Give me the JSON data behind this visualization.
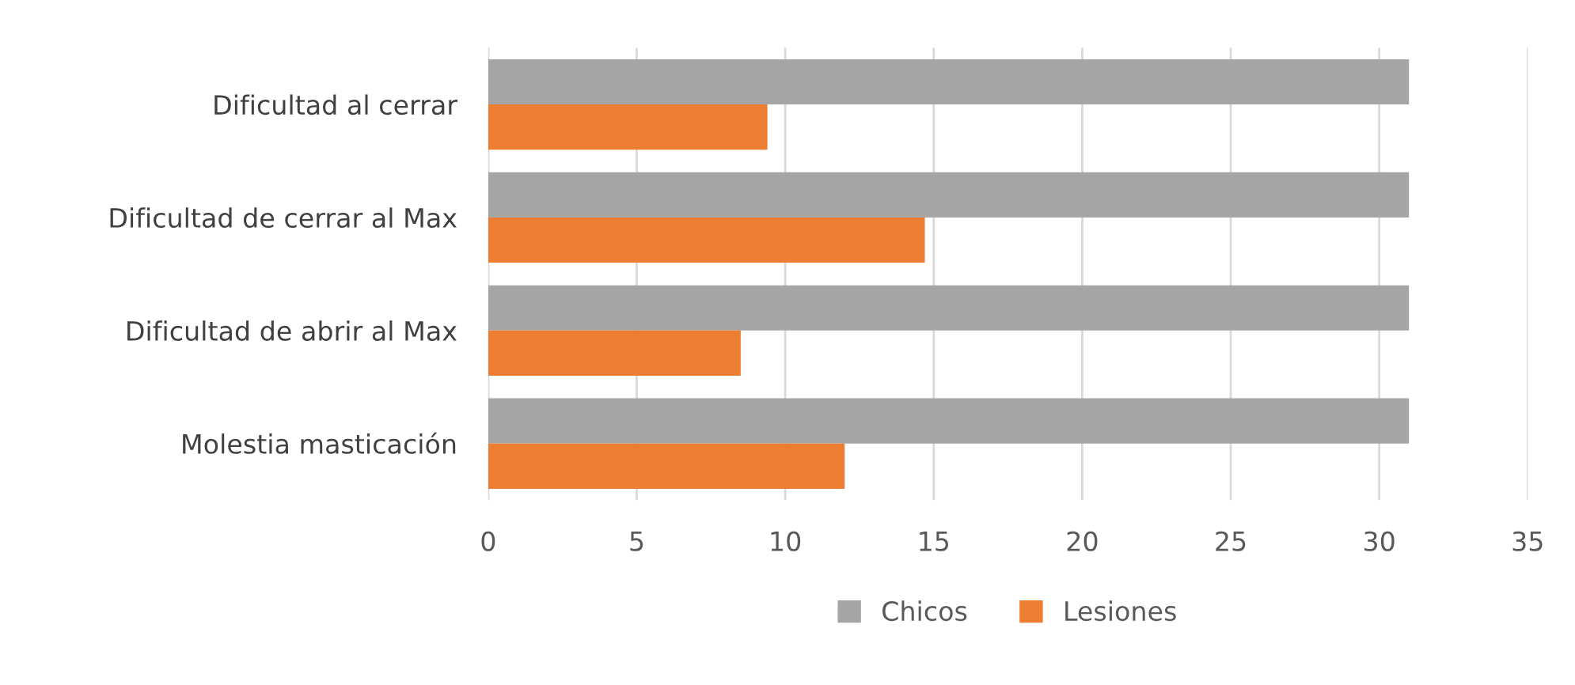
{
  "chart_data": {
    "type": "bar",
    "orientation": "horizontal",
    "categories": [
      "Dificultad al cerrar",
      "Dificultad de cerrar al Max",
      "Dificultad de abrir al Max",
      "Molestia masticación"
    ],
    "series": [
      {
        "name": "Chicos",
        "color": "#a5a5a5",
        "values": [
          31,
          31,
          31,
          31
        ]
      },
      {
        "name": "Lesiones",
        "color": "#ed7d31",
        "values": [
          9.4,
          14.7,
          8.5,
          12
        ]
      }
    ],
    "xlim": [
      0,
      35
    ],
    "xticks": [
      0,
      5,
      10,
      15,
      20,
      25,
      30,
      35
    ],
    "grid": "x",
    "legend": "bottom"
  }
}
